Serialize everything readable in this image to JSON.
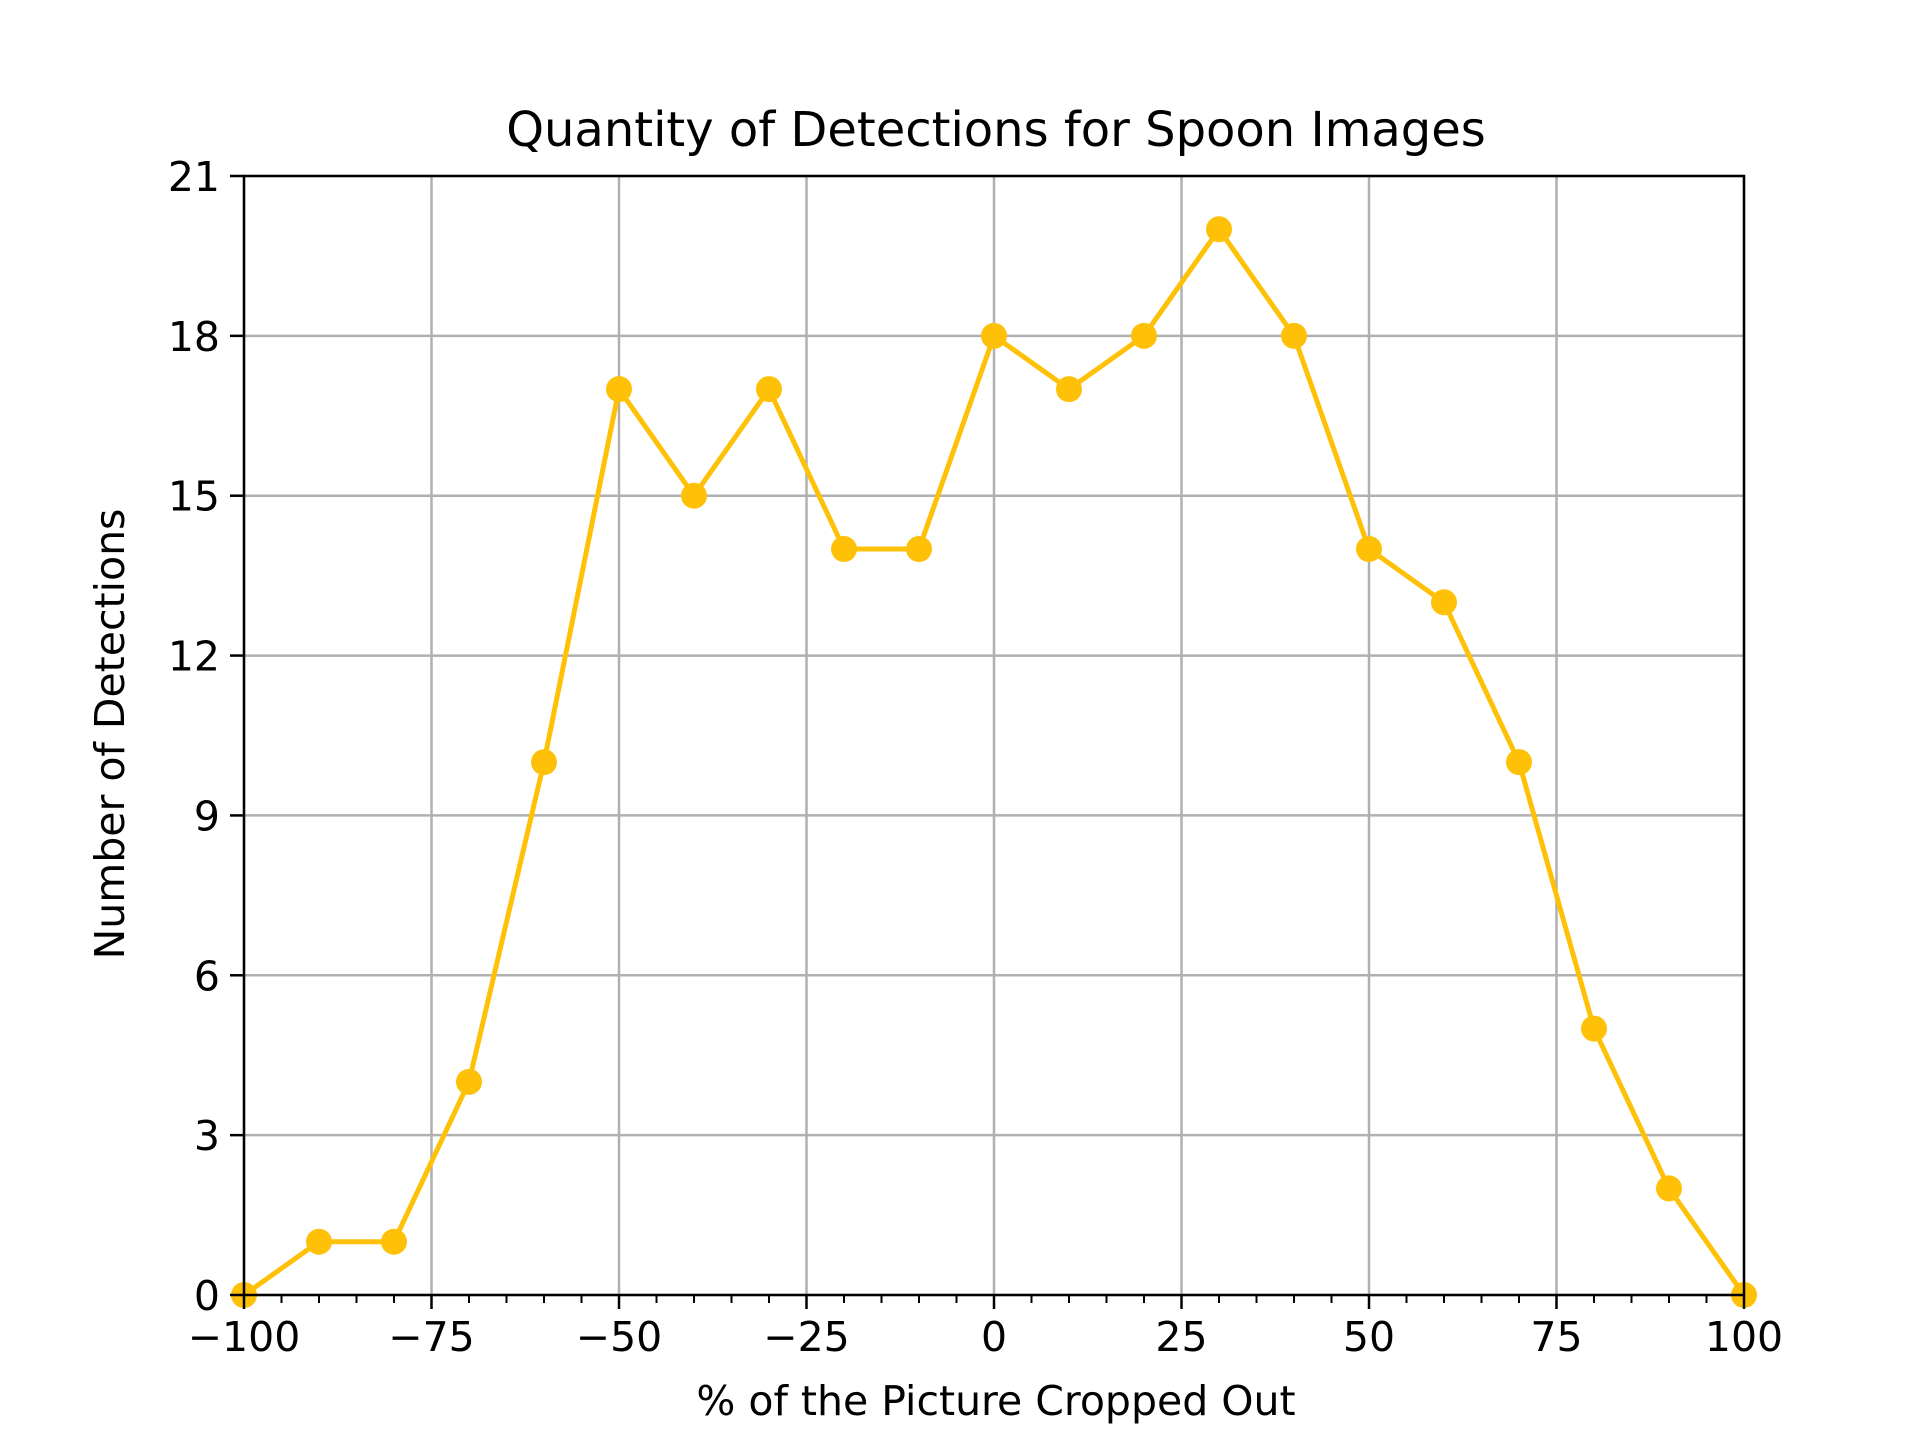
{
  "chart_data": {
    "type": "line",
    "title": "Quantity of Detections for Spoon Images",
    "xlabel": "% of the Picture Cropped Out",
    "ylabel": "Number of Detections",
    "xlim": [
      -100,
      100
    ],
    "ylim": [
      0,
      21
    ],
    "xticks": [
      -100,
      -75,
      -50,
      -25,
      0,
      25,
      50,
      75,
      100
    ],
    "xtick_labels": [
      "−100",
      "−75",
      "−50",
      "−25",
      "0",
      "25",
      "50",
      "75",
      "100"
    ],
    "yticks": [
      0,
      3,
      6,
      9,
      12,
      15,
      18,
      21
    ],
    "ytick_labels": [
      "0",
      "3",
      "6",
      "9",
      "12",
      "15",
      "18",
      "21"
    ],
    "grid": true,
    "series": [
      {
        "color": "#FFC107",
        "marker": "circle",
        "x": [
          -100,
          -90,
          -80,
          -70,
          -60,
          -50,
          -40,
          -30,
          -20,
          -10,
          0,
          10,
          20,
          30,
          40,
          50,
          60,
          70,
          80,
          90,
          100
        ],
        "y": [
          0,
          1,
          1,
          4,
          10,
          17,
          15,
          17,
          14,
          14,
          18,
          17,
          18,
          20,
          18,
          14,
          13,
          10,
          5,
          2,
          0
        ]
      }
    ]
  }
}
